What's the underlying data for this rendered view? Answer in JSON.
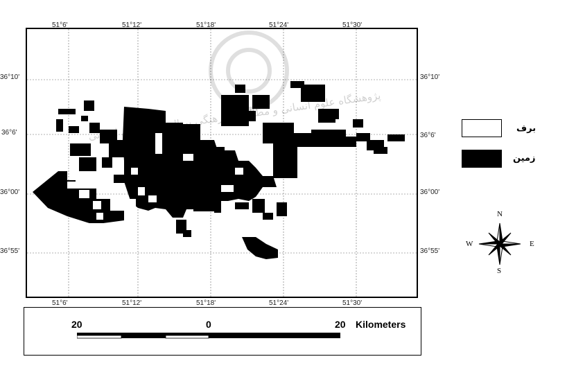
{
  "map": {
    "top_coords": [
      "51°6'",
      "51°12'",
      "51°18'",
      "51°24'",
      "51°30'"
    ],
    "bottom_coords": [
      "51°6'",
      "51°12'",
      "51°18'",
      "51°24'",
      "51°30'"
    ],
    "left_coords": [
      "36°10'",
      "36°6'",
      "36°00'",
      "36°55'"
    ],
    "right_coords": [
      "36°10'",
      "36°6'",
      "36°00'",
      "36°55'"
    ],
    "watermark": "پژوهشگاه علوم انسانی و مطالعات فرهنگی پرتال جامع علوم انسانی"
  },
  "legend": {
    "items": [
      {
        "label": "برف",
        "color": "#ffffff"
      },
      {
        "label": "زمین",
        "color": "#000000"
      }
    ]
  },
  "north_arrow": {
    "n": "N",
    "s": "S",
    "e": "E",
    "w": "W"
  },
  "scale_bar": {
    "left_label": "20",
    "mid_label": "0",
    "right_label": "20",
    "unit": "Kilometers"
  }
}
